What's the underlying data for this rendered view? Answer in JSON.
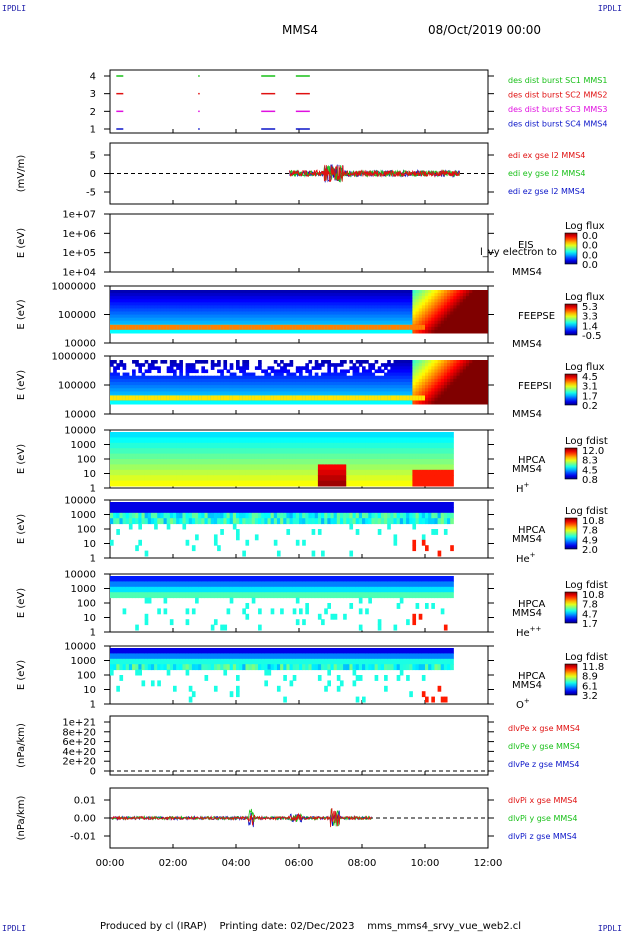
{
  "header": {
    "corner_tl": "IPDLI",
    "corner_tr": "IPDLI",
    "spacecraft": "MMS4",
    "datetime": "08/Oct/2019 00:00"
  },
  "footer": {
    "produced_by": "Produced by cl (IRAP)",
    "printing_date": "Printing date: 02/Dec/2023",
    "script": "mms_mms4_srvy_vue_web2.cl",
    "corner_bl": "IPDLI",
    "corner_br": "IPDLI"
  },
  "colors": {
    "blue": "#0a14c8",
    "green": "#18c018",
    "red": "#e01010",
    "magenta": "#e010e0"
  },
  "chart_data": [
    {
      "id": "burst",
      "type": "line",
      "ylabel": "",
      "yticks": [
        "4",
        "3",
        "2",
        "1"
      ],
      "series": [
        {
          "name": "des dist burst SC1 MMS1",
          "color": "#18c018",
          "level": 4,
          "x_hours": [
            0.2,
            2.8,
            4.8,
            5.9
          ]
        },
        {
          "name": "des dist burst SC2 MMS2",
          "color": "#e01010",
          "level": 3,
          "x_hours": [
            0.2,
            2.8,
            4.8,
            5.9
          ]
        },
        {
          "name": "des dist burst SC3 MMS3",
          "color": "#e010e0",
          "level": 2,
          "x_hours": [
            0.2,
            2.8,
            4.8,
            5.9
          ]
        },
        {
          "name": "des dist burst SC4 MMS4",
          "color": "#0a14c8",
          "level": 1,
          "x_hours": [
            0.2,
            2.8,
            4.8,
            5.9
          ]
        }
      ]
    },
    {
      "id": "edi",
      "type": "line",
      "ylabel": "(mV/m)",
      "yticks": [
        "5",
        "0",
        "-5"
      ],
      "ylim": [
        -8,
        8
      ],
      "series": [
        {
          "name": "edi ex gse l2 MMS4",
          "color": "#e01010"
        },
        {
          "name": "edi ey gse l2 MMS4",
          "color": "#18c018"
        },
        {
          "name": "edi ez gse l2 MMS4",
          "color": "#0a14c8"
        }
      ]
    },
    {
      "id": "eis",
      "type": "heatmap",
      "ylabel": "E (eV)",
      "yticks": [
        "1e+07",
        "1e+06",
        "1e+05",
        "1e+04"
      ],
      "side_label": "EIS",
      "overlay_label": "l_vy electron to",
      "sc_label": "MMS4",
      "cbar_title": "Log flux",
      "cbar_ticks": [
        "0.0",
        "0.0",
        "0.0",
        "0.0"
      ]
    },
    {
      "id": "feepse",
      "type": "heatmap",
      "ylabel": "E (eV)",
      "yticks": [
        "1000000",
        "100000",
        "10000"
      ],
      "side_label": "FEEPSE",
      "sc_label": "MMS4",
      "cbar_title": "Log flux",
      "cbar_ticks": [
        "5.3",
        "3.3",
        "1.4",
        "-0.5"
      ]
    },
    {
      "id": "feepsi",
      "type": "heatmap",
      "ylabel": "E (eV)",
      "yticks": [
        "1000000",
        "100000",
        "10000"
      ],
      "side_label": "FEEPSI",
      "sc_label": "MMS4",
      "cbar_title": "Log flux",
      "cbar_ticks": [
        "4.5",
        "3.1",
        "1.7",
        "0.2"
      ]
    },
    {
      "id": "hpca_h",
      "type": "heatmap",
      "ylabel": "E (eV)",
      "yticks": [
        "10000",
        "1000",
        "100",
        "10",
        "1"
      ],
      "side_label": "HPCA",
      "sc_label": "MMS4",
      "species": "H",
      "species_sup": "+",
      "cbar_title": "Log fdist",
      "cbar_ticks": [
        "12.0",
        "8.3",
        "4.5",
        "0.8"
      ]
    },
    {
      "id": "hpca_he",
      "type": "heatmap",
      "ylabel": "E (eV)",
      "yticks": [
        "10000",
        "1000",
        "100",
        "10",
        "1"
      ],
      "side_label": "HPCA",
      "sc_label": "MMS4",
      "species": "He",
      "species_sup": "+",
      "cbar_title": "Log fdist",
      "cbar_ticks": [
        "10.8",
        "7.8",
        "4.9",
        "2.0"
      ]
    },
    {
      "id": "hpca_hepp",
      "type": "heatmap",
      "ylabel": "E (eV)",
      "yticks": [
        "10000",
        "1000",
        "100",
        "10",
        "1"
      ],
      "side_label": "HPCA",
      "sc_label": "MMS4",
      "species": "He",
      "species_sup": "++",
      "cbar_title": "Log fdist",
      "cbar_ticks": [
        "10.8",
        "7.8",
        "4.7",
        "1.7"
      ]
    },
    {
      "id": "hpca_o",
      "type": "heatmap",
      "ylabel": "E (eV)",
      "yticks": [
        "10000",
        "1000",
        "100",
        "10",
        "1"
      ],
      "side_label": "HPCA",
      "sc_label": "MMS4",
      "species": "O",
      "species_sup": "+",
      "cbar_title": "Log fdist",
      "cbar_ticks": [
        "11.8",
        "8.9",
        "6.1",
        "3.2"
      ]
    },
    {
      "id": "divpe",
      "type": "line",
      "ylabel": "(nPa/km)",
      "yticks": [
        "1e+21",
        "8e+20",
        "6e+20",
        "4e+20",
        "2e+20",
        "0"
      ],
      "series": [
        {
          "name": "dlvPe x gse MMS4",
          "color": "#e01010"
        },
        {
          "name": "dlvPe y gse MMS4",
          "color": "#18c018"
        },
        {
          "name": "dlvPe z gse MMS4",
          "color": "#0a14c8"
        }
      ]
    },
    {
      "id": "divpi",
      "type": "line",
      "ylabel": "(nPa/km)",
      "yticks": [
        "0.01",
        "0.00",
        "-0.01"
      ],
      "ylim": [
        -0.015,
        0.015
      ],
      "series": [
        {
          "name": "dlvPi x gse MMS4",
          "color": "#e01010"
        },
        {
          "name": "dlvPi y gse MMS4",
          "color": "#18c018"
        },
        {
          "name": "dlvPi z gse MMS4",
          "color": "#0a14c8"
        }
      ]
    }
  ],
  "time_axis": {
    "ticks": [
      "00:00",
      "02:00",
      "04:00",
      "06:00",
      "08:00",
      "10:00",
      "12:00"
    ],
    "xlim_hours": [
      0,
      12
    ]
  }
}
